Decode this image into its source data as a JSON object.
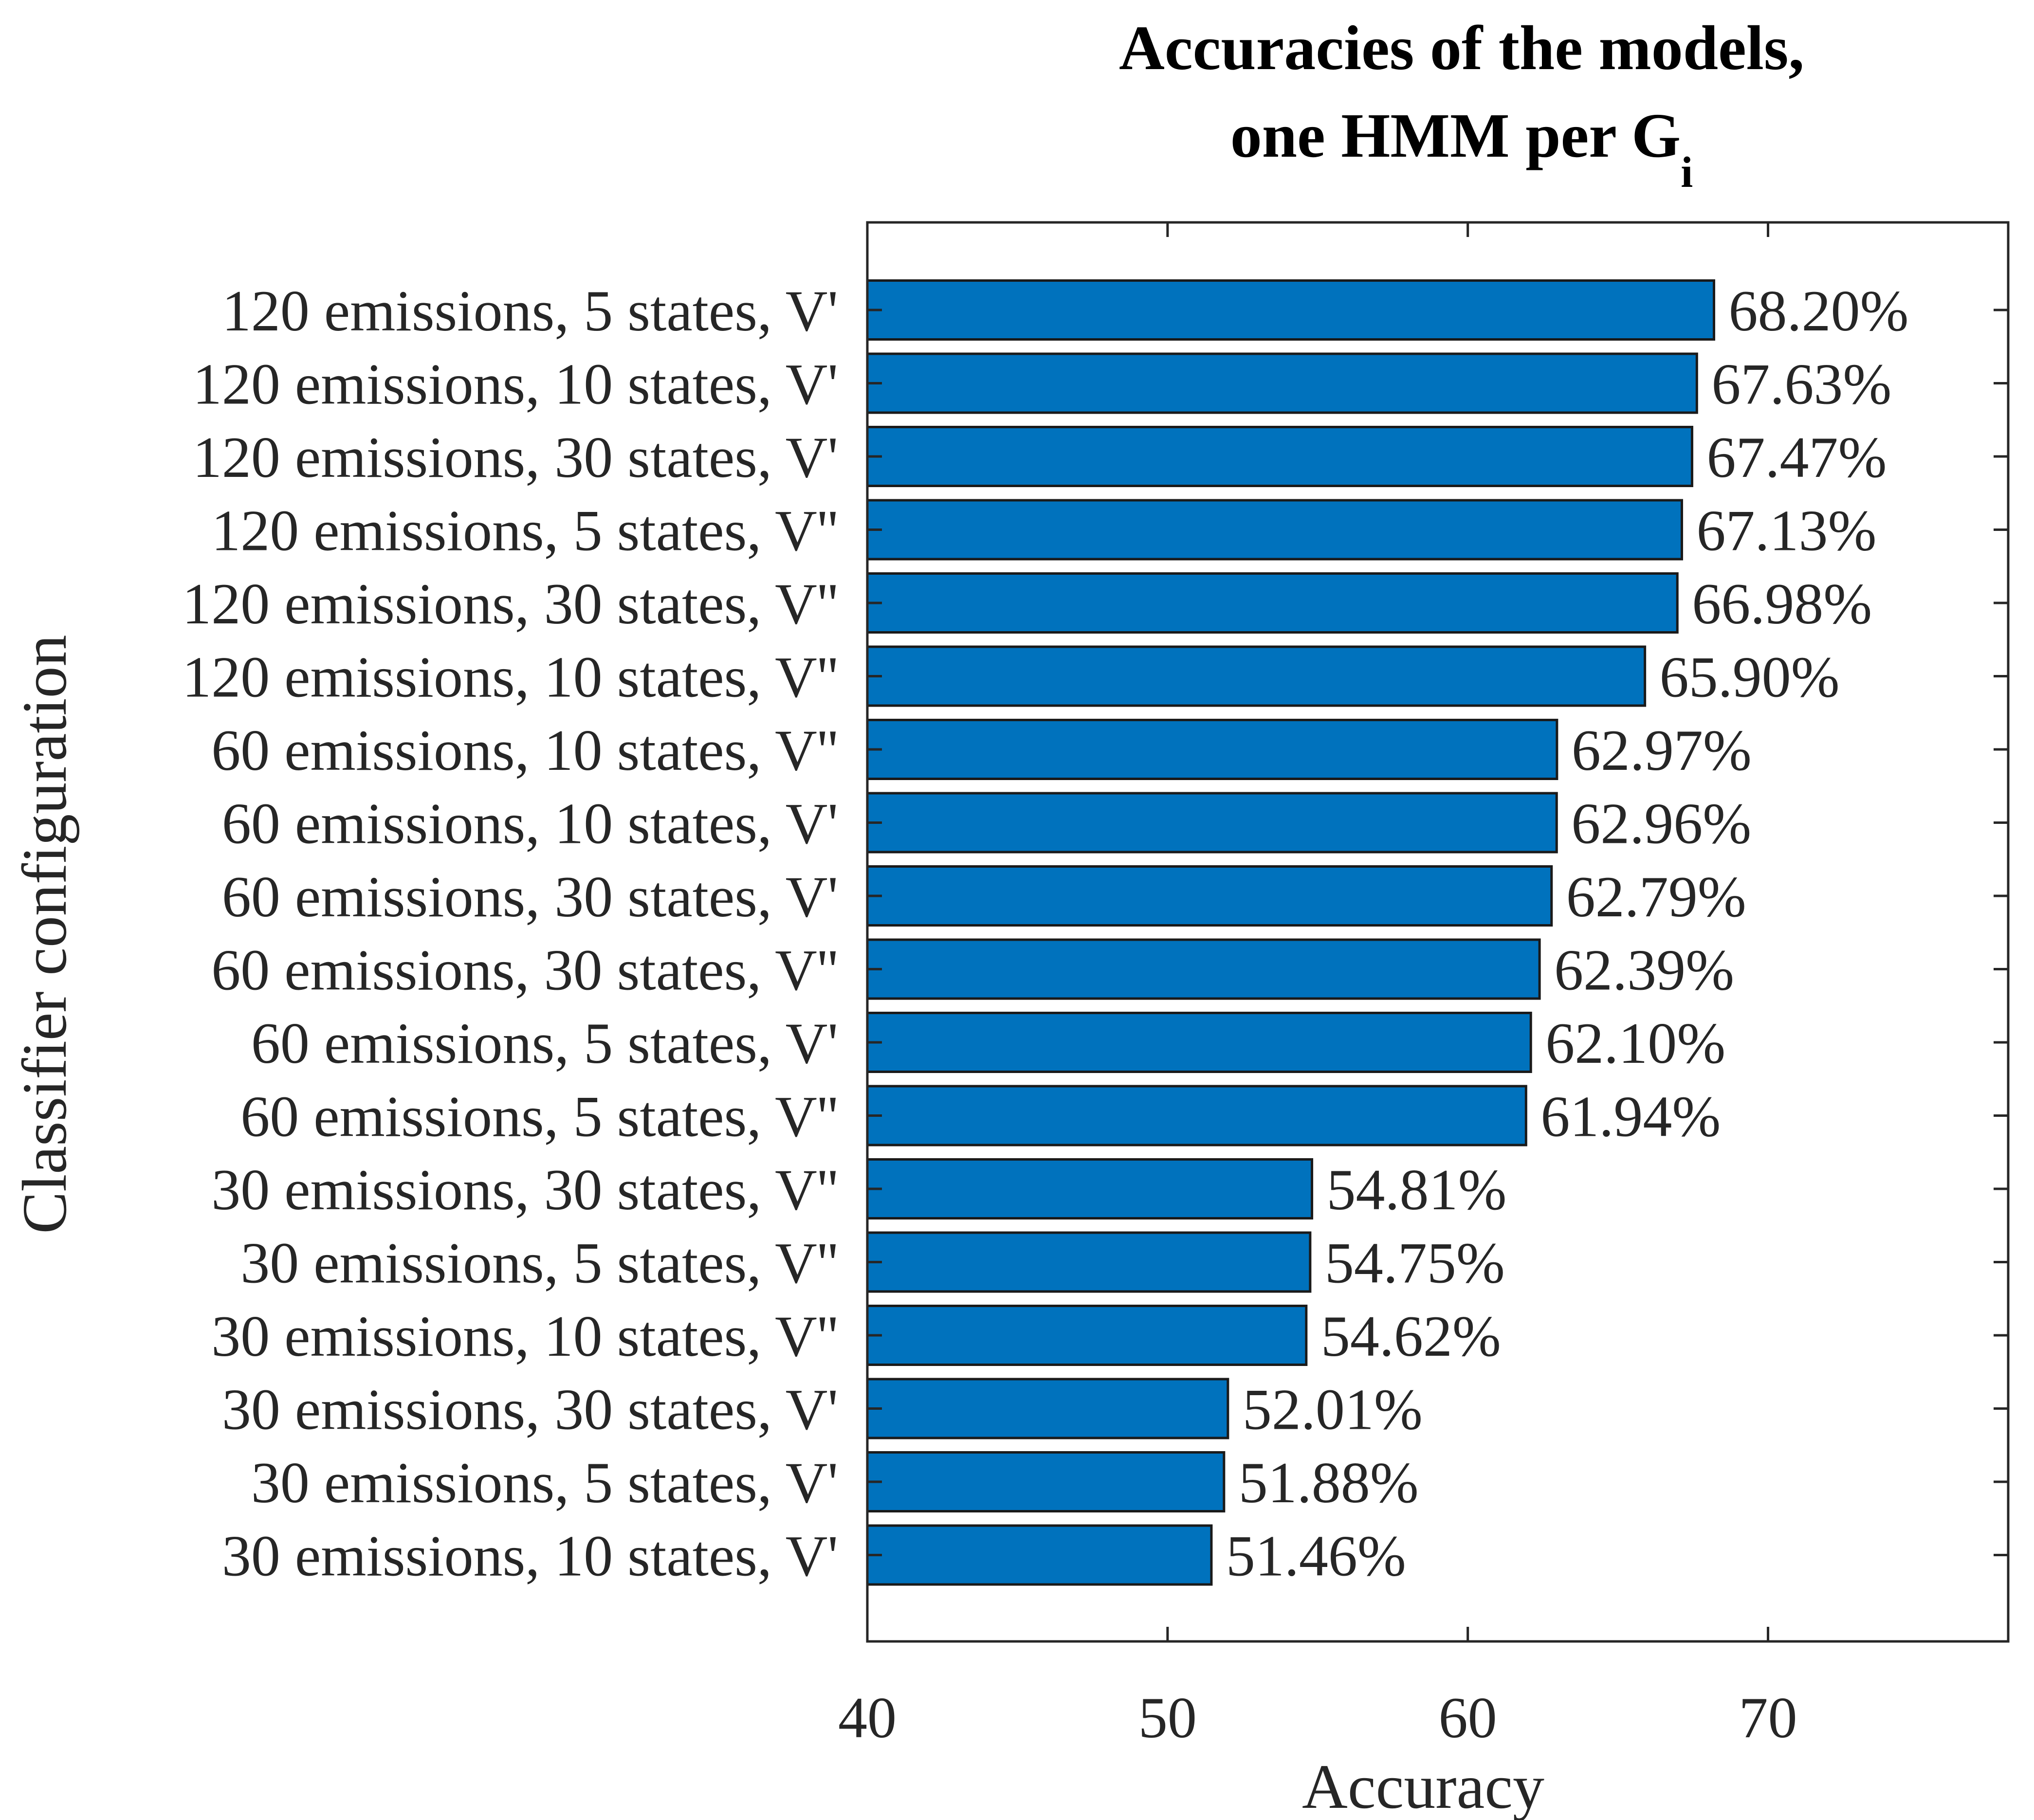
{
  "chart_data": {
    "type": "bar",
    "orientation": "horizontal",
    "title": {
      "line1": "Accuracies of the models,",
      "line2_main": "one HMM per G",
      "line2_subscript": "i"
    },
    "xlabel": "Accuracy",
    "ylabel": "Classifier configuration",
    "xlim": [
      40,
      78
    ],
    "xticks": [
      40,
      50,
      60,
      70
    ],
    "grid": false,
    "bar_color": "#0072BD",
    "bar_edge_color": "#1a1a1a",
    "axis_color": "#262626",
    "categories": [
      "120 emissions, 5 states, V'",
      "120 emissions, 10 states, V'",
      "120 emissions, 30 states, V'",
      "120 emissions, 5 states, V''",
      "120 emissions, 30 states, V''",
      "120 emissions, 10 states, V''",
      "60 emissions, 10 states, V''",
      "60 emissions, 10 states, V'",
      "60 emissions, 30 states, V'",
      "60 emissions, 30 states, V''",
      "60 emissions, 5 states, V'",
      "60 emissions, 5 states, V''",
      "30 emissions, 30 states, V''",
      "30 emissions, 5 states, V''",
      "30 emissions, 10 states, V''",
      "30 emissions, 30 states, V'",
      "30 emissions, 5 states, V'",
      "30 emissions, 10 states, V'"
    ],
    "values": [
      68.2,
      67.63,
      67.47,
      67.13,
      66.98,
      65.9,
      62.97,
      62.96,
      62.79,
      62.39,
      62.1,
      61.94,
      54.81,
      54.75,
      54.62,
      52.01,
      51.88,
      51.46
    ],
    "data_labels": [
      "68.20%",
      "67.63%",
      "67.47%",
      "67.13%",
      "66.98%",
      "65.90%",
      "62.97%",
      "62.96%",
      "62.79%",
      "62.39%",
      "62.10%",
      "61.94%",
      "54.81%",
      "54.75%",
      "54.62%",
      "52.01%",
      "51.88%",
      "51.46%"
    ]
  }
}
